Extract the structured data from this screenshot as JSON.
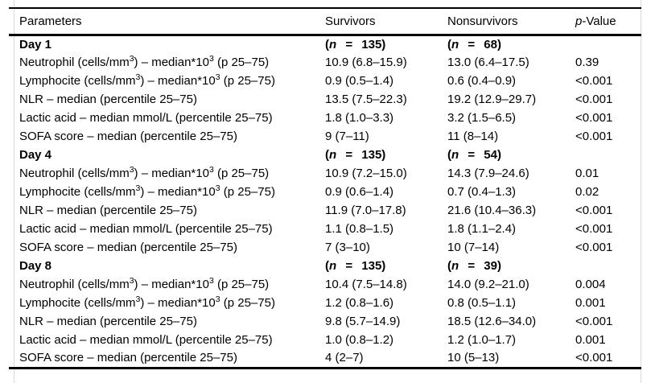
{
  "colors": {
    "background": "#ffffff",
    "text": "#000000",
    "rule": "#000000",
    "page_edge_line": "#d9d9d9"
  },
  "table": {
    "columns": [
      {
        "name": "parameters",
        "segments": [
          {
            "t": "Parameters"
          }
        ]
      },
      {
        "name": "survivors",
        "segments": [
          {
            "t": "Survivors"
          }
        ]
      },
      {
        "name": "nonsurvivors",
        "segments": [
          {
            "t": "Nonsurvivors"
          }
        ]
      },
      {
        "name": "pvalue",
        "segments": [
          {
            "t": "p",
            "i": true
          },
          {
            "t": "-Value"
          }
        ]
      }
    ],
    "sections": [
      {
        "day_label": "Day 1",
        "n_survivors": [
          {
            "t": "("
          },
          {
            "t": "n",
            "i": true
          },
          {
            "t": " = 135)"
          }
        ],
        "n_nonsurvivors": [
          {
            "t": "("
          },
          {
            "t": "n",
            "i": true
          },
          {
            "t": " = 68)"
          }
        ],
        "rows": [
          {
            "label": [
              {
                "t": "Neutrophil (cells/mm"
              },
              {
                "t": "3",
                "sup": true
              },
              {
                "t": ") – median*10"
              },
              {
                "t": "3",
                "sup": true
              },
              {
                "t": " (p 25–75)"
              }
            ],
            "survivors": "10.9 (6.8–15.9)",
            "nonsurvivors": "13.0 (6.4–17.5)",
            "p": "0.39"
          },
          {
            "label": [
              {
                "t": "Lymphocite (cells/mm"
              },
              {
                "t": "3",
                "sup": true
              },
              {
                "t": ") – median*10"
              },
              {
                "t": "3",
                "sup": true
              },
              {
                "t": " (p 25–75)"
              }
            ],
            "survivors": "0.9 (0.5–1.4)",
            "nonsurvivors": "0.6 (0.4–0.9)",
            "p": "<0.001"
          },
          {
            "label": [
              {
                "t": "NLR – median (percentile 25–75)"
              }
            ],
            "survivors": "13.5 (7.5–22.3)",
            "nonsurvivors": "19.2 (12.9–29.7)",
            "p": "<0.001"
          },
          {
            "label": [
              {
                "t": "Lactic acid – median mmol/L (percentile 25–75)"
              }
            ],
            "survivors": "1.8 (1.0–3.3)",
            "nonsurvivors": "3.2 (1.5–6.5)",
            "p": "<0.001"
          },
          {
            "label": [
              {
                "t": "SOFA score – median (percentile 25–75)"
              }
            ],
            "survivors": "9 (7–11)",
            "nonsurvivors": "11 (8–14)",
            "p": "<0.001"
          }
        ]
      },
      {
        "day_label": "Day 4",
        "n_survivors": [
          {
            "t": "("
          },
          {
            "t": "n",
            "i": true
          },
          {
            "t": " = 135)"
          }
        ],
        "n_nonsurvivors": [
          {
            "t": "("
          },
          {
            "t": "n",
            "i": true
          },
          {
            "t": " = 54)"
          }
        ],
        "rows": [
          {
            "label": [
              {
                "t": "Neutrophil (cells/mm"
              },
              {
                "t": "3",
                "sup": true
              },
              {
                "t": ") – median*10"
              },
              {
                "t": "3",
                "sup": true
              },
              {
                "t": " (p 25–75)"
              }
            ],
            "survivors": "10.9 (7.2–15.0)",
            "nonsurvivors": "14.3 (7.9–24.6)",
            "p": "0.01"
          },
          {
            "label": [
              {
                "t": "Lymphocite (cells/mm"
              },
              {
                "t": "3",
                "sup": true
              },
              {
                "t": ") – median*10"
              },
              {
                "t": "3",
                "sup": true
              },
              {
                "t": " (p 25–75)"
              }
            ],
            "survivors": "0.9 (0.6–1.4)",
            "nonsurvivors": "0.7 (0.4–1.3)",
            "p": "0.02"
          },
          {
            "label": [
              {
                "t": "NLR – median (percentile 25–75)"
              }
            ],
            "survivors": "11.9 (7.0–17.8)",
            "nonsurvivors": "21.6 (10.4–36.3)",
            "p": "<0.001"
          },
          {
            "label": [
              {
                "t": "Lactic acid – median mmol/L (percentile 25–75)"
              }
            ],
            "survivors": "1.1 (0.8–1.5)",
            "nonsurvivors": "1.8 (1.1–2.4)",
            "p": "<0.001"
          },
          {
            "label": [
              {
                "t": "SOFA score – median (percentile 25–75)"
              }
            ],
            "survivors": "7 (3–10)",
            "nonsurvivors": "10 (7–14)",
            "p": "<0.001"
          }
        ]
      },
      {
        "day_label": "Day 8",
        "n_survivors": [
          {
            "t": "("
          },
          {
            "t": "n",
            "i": true
          },
          {
            "t": " = 135)"
          }
        ],
        "n_nonsurvivors": [
          {
            "t": "("
          },
          {
            "t": "n",
            "i": true
          },
          {
            "t": " = 39)"
          }
        ],
        "rows": [
          {
            "label": [
              {
                "t": "Neutrophil (cells/mm"
              },
              {
                "t": "3",
                "sup": true
              },
              {
                "t": ") – median*10"
              },
              {
                "t": "3",
                "sup": true
              },
              {
                "t": " (p 25–75)"
              }
            ],
            "survivors": "10.4 (7.5–14.8)",
            "nonsurvivors": "14.0 (9.2–21.0)",
            "p": "0.004"
          },
          {
            "label": [
              {
                "t": "Lymphocite (cells/mm"
              },
              {
                "t": "3",
                "sup": true
              },
              {
                "t": ") – median*10"
              },
              {
                "t": "3",
                "sup": true
              },
              {
                "t": " (p 25–75)"
              }
            ],
            "survivors": "1.2 (0.8–1.6)",
            "nonsurvivors": "0.8 (0.5–1.1)",
            "p": "0.001"
          },
          {
            "label": [
              {
                "t": "NLR – median (percentile 25–75)"
              }
            ],
            "survivors": "9.8 (5.7–14.9)",
            "nonsurvivors": "18.5 (12.6–34.0)",
            "p": "<0.001"
          },
          {
            "label": [
              {
                "t": "Lactic acid – median mmol/L (percentile 25–75)"
              }
            ],
            "survivors": "1.0 (0.8–1.2)",
            "nonsurvivors": "1.2 (1.0–1.7)",
            "p": "0.001"
          },
          {
            "label": [
              {
                "t": "SOFA score – median (percentile 25–75)"
              }
            ],
            "survivors": "4 (2–7)",
            "nonsurvivors": "10 (5–13)",
            "p": "<0.001"
          }
        ]
      }
    ]
  }
}
